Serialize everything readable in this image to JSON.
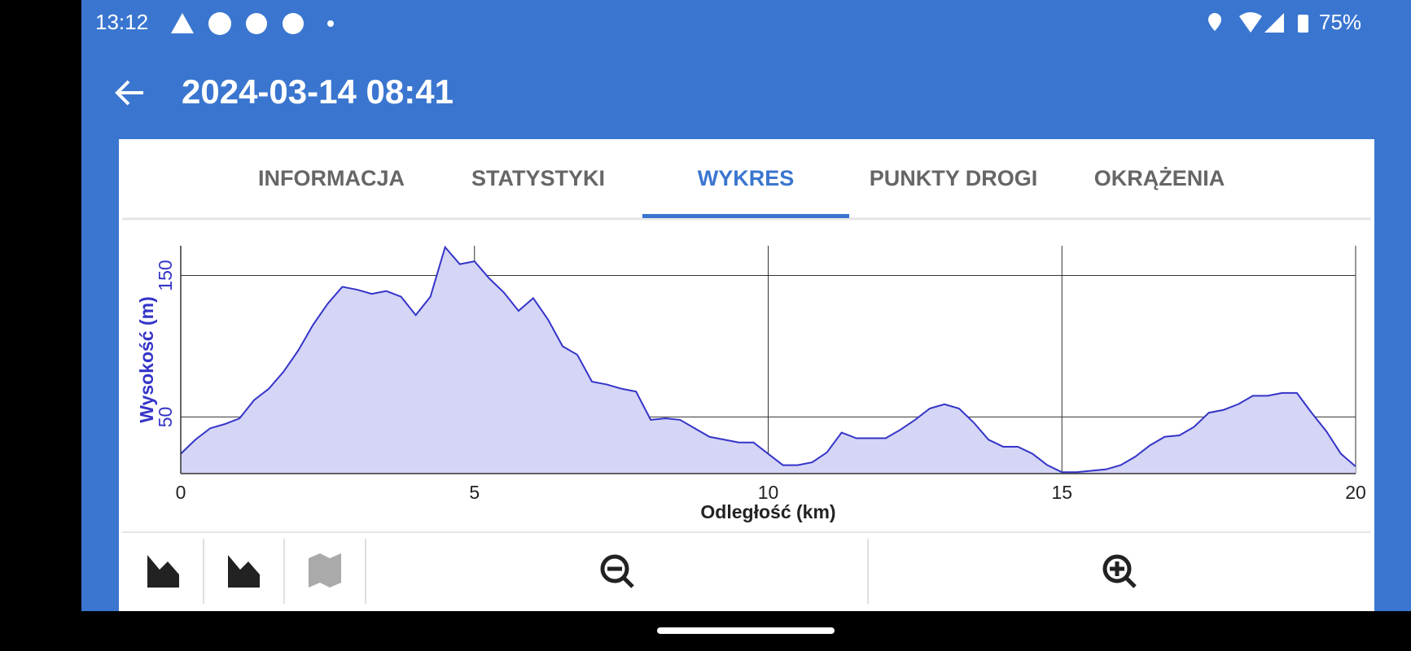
{
  "status_bar": {
    "time": "13:12",
    "battery": "75%"
  },
  "app_bar": {
    "title": "2024-03-14 08:41"
  },
  "tabs": [
    "INFORMACJA",
    "STATYSTYKI",
    "WYKRES",
    "PUNKTY DROGI",
    "OKRĄŻENIA"
  ],
  "selected_tab": 2,
  "chart_data": {
    "type": "area",
    "xlabel": "Odległość (km)",
    "ylabel": "Wysokość (m)",
    "x": [
      0,
      0.25,
      0.5,
      0.75,
      1,
      1.25,
      1.5,
      1.75,
      2,
      2.25,
      2.5,
      2.75,
      3,
      3.25,
      3.5,
      3.75,
      4,
      4.25,
      4.5,
      4.75,
      5,
      5.25,
      5.5,
      5.75,
      6,
      6.25,
      6.5,
      6.75,
      7,
      7.25,
      7.5,
      7.75,
      8,
      8.25,
      8.5,
      8.75,
      9,
      9.25,
      9.5,
      9.75,
      10,
      10.25,
      10.5,
      10.75,
      11,
      11.25,
      11.5,
      11.75,
      12,
      12.25,
      12.5,
      12.75,
      13,
      13.25,
      13.5,
      13.75,
      14,
      14.25,
      14.5,
      14.75,
      15,
      15.25,
      15.5,
      15.75,
      16,
      16.25,
      16.5,
      16.75,
      17,
      17.25,
      17.5,
      17.75,
      18,
      18.25,
      18.5,
      18.75,
      19,
      19.25,
      19.5,
      19.75,
      20
    ],
    "values": [
      24,
      34,
      42,
      45,
      49,
      62,
      70,
      82,
      97,
      115,
      130,
      142,
      140,
      137,
      139,
      135,
      122,
      135,
      170,
      158,
      160,
      148,
      138,
      125,
      134,
      119,
      100,
      94,
      75,
      73,
      70,
      68,
      48,
      49,
      48,
      42,
      36,
      34,
      32,
      32,
      24,
      16,
      16,
      18,
      25,
      39,
      35,
      35,
      35,
      41,
      48,
      56,
      59,
      56,
      46,
      34,
      29,
      29,
      24,
      16,
      11,
      11,
      12,
      13,
      16,
      22,
      30,
      36,
      37,
      43,
      53,
      55,
      59,
      65,
      65,
      67,
      67,
      53,
      40,
      24,
      15
    ],
    "xlim": [
      0,
      20
    ],
    "ylim": [
      10,
      171
    ],
    "xticks": [
      0,
      5,
      10,
      15,
      20
    ],
    "yticks": [
      50,
      150
    ],
    "grid": true,
    "color": "#3434c8",
    "fill_color": "#d5d5f6"
  }
}
